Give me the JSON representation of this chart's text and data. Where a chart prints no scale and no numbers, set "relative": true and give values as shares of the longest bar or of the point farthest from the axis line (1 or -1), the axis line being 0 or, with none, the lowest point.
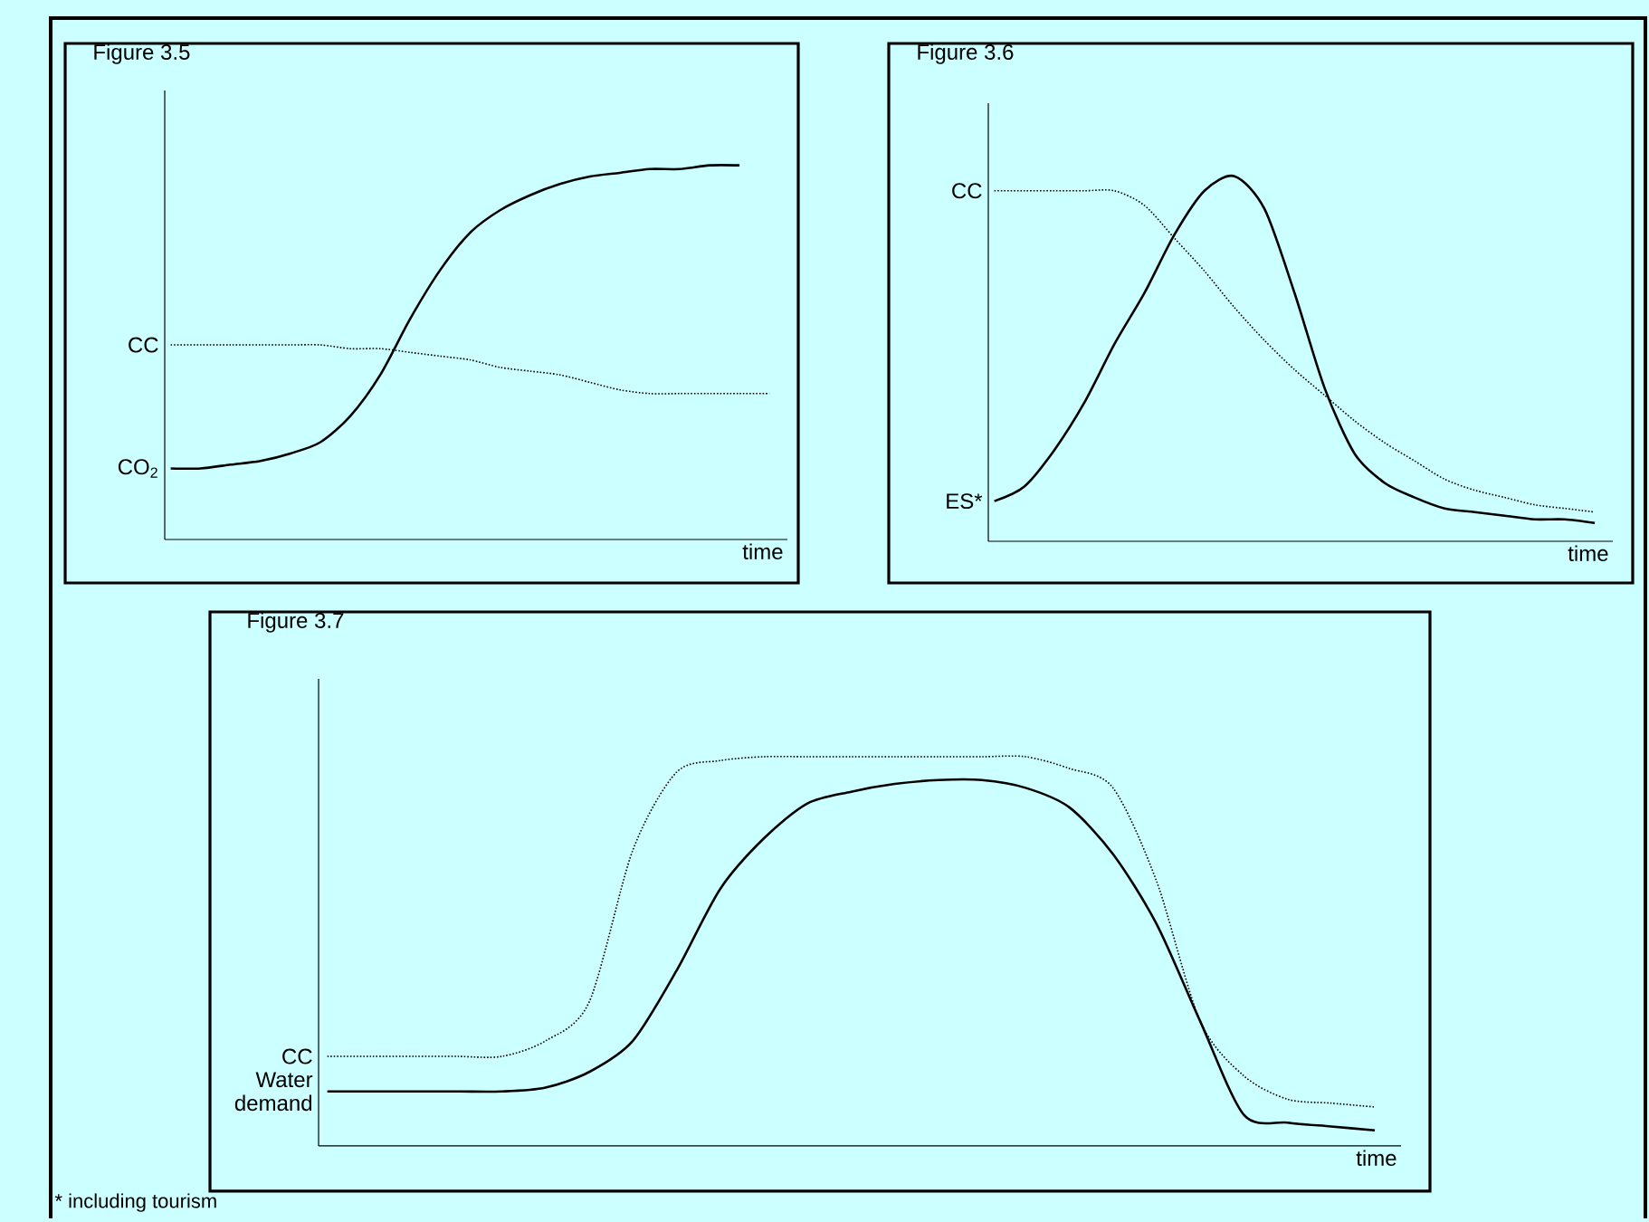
{
  "chart_data": [
    {
      "type": "line",
      "title": "Figure 3.5",
      "xlabel": "time",
      "relative": true,
      "categories": [
        null,
        null,
        null,
        null,
        null,
        null,
        null,
        null,
        null,
        null,
        null,
        null,
        null,
        null,
        null,
        null,
        null,
        null,
        null,
        null,
        null
      ],
      "series": [
        {
          "name": "CO$_{2}$",
          "color": "#000000",
          "line_style": "solid",
          "values": [
            0.19,
            0.19,
            0.2,
            0.21,
            0.23,
            0.26,
            0.33,
            0.44,
            0.59,
            0.72,
            0.82,
            0.88,
            0.92,
            0.95,
            0.97,
            0.98,
            0.99,
            0.99,
            1.0,
            1.0,
            null
          ]
        },
        {
          "name": "CC",
          "color": "#000000",
          "line_style": "dotted",
          "values": [
            0.52,
            0.52,
            0.52,
            0.52,
            0.52,
            0.52,
            0.51,
            0.51,
            0.5,
            0.49,
            0.48,
            0.46,
            0.45,
            0.44,
            0.42,
            0.4,
            0.39,
            0.39,
            0.39,
            0.39,
            0.39
          ]
        }
      ]
    },
    {
      "type": "line",
      "title": "Figure 3.6",
      "xlabel": "time",
      "relative": true,
      "categories": [
        null,
        null,
        null,
        null,
        null,
        null,
        null,
        null,
        null,
        null,
        null,
        null,
        null,
        null,
        null,
        null,
        null,
        null,
        null,
        null,
        null
      ],
      "series": [
        {
          "name": "ES*",
          "color": "#000000",
          "line_style": "solid",
          "values": [
            0.11,
            0.15,
            0.25,
            0.38,
            0.54,
            0.68,
            0.84,
            0.96,
            1.0,
            0.91,
            0.68,
            0.42,
            0.24,
            0.16,
            0.12,
            0.09,
            0.08,
            0.07,
            0.06,
            0.06,
            0.05
          ]
        },
        {
          "name": "CC",
          "color": "#000000",
          "line_style": "dotted",
          "values": [
            0.96,
            0.96,
            0.96,
            0.96,
            0.96,
            0.92,
            0.83,
            0.74,
            0.64,
            0.55,
            0.47,
            0.4,
            0.33,
            0.27,
            0.22,
            0.17,
            0.14,
            0.12,
            0.1,
            0.09,
            0.08
          ]
        }
      ]
    },
    {
      "type": "line",
      "title": "Figure 3.7",
      "xlabel": "time",
      "relative": true,
      "annotations": [
        "* including tourism"
      ],
      "categories": [
        null,
        null,
        null,
        null,
        null,
        null,
        null,
        null,
        null,
        null,
        null,
        null,
        null,
        null,
        null,
        null,
        null,
        null,
        null,
        null,
        null,
        null,
        null,
        null,
        null
      ],
      "series": [
        {
          "name": "CC",
          "color": "#000000",
          "line_style": "dotted",
          "values": [
            0.23,
            0.23,
            0.23,
            0.23,
            0.23,
            0.27,
            0.37,
            0.76,
            0.96,
            0.99,
            1.0,
            1.0,
            1.0,
            1.0,
            1.0,
            1.0,
            1.0,
            0.97,
            0.92,
            0.68,
            0.32,
            0.18,
            0.12,
            0.11,
            0.1
          ]
        },
        {
          "name": "Water demand",
          "color": "#000000",
          "line_style": "solid",
          "values": [
            0.14,
            0.14,
            0.14,
            0.14,
            0.14,
            0.15,
            0.19,
            0.27,
            0.45,
            0.66,
            0.79,
            0.88,
            0.91,
            0.93,
            0.94,
            0.94,
            0.92,
            0.87,
            0.75,
            0.57,
            0.32,
            0.08,
            0.06,
            0.05,
            0.04
          ]
        }
      ]
    }
  ]
}
